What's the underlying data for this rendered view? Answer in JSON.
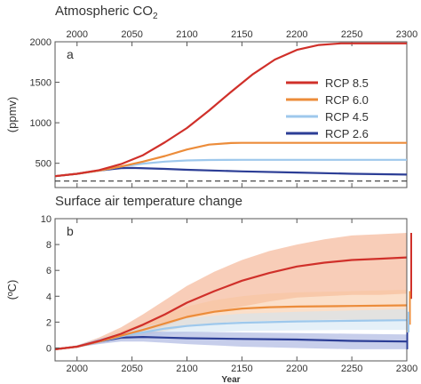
{
  "figure": {
    "panel_a_title": "Atmospheric CO",
    "panel_a_title_sub": "2",
    "panel_b_title": "Surface air temperature change"
  },
  "colors": {
    "rcp85": "#d0302a",
    "rcp60": "#ec8c3a",
    "rcp45": "#9ec8ec",
    "rcp26": "#2c3e96",
    "rcp85_band": "#f3a47e",
    "rcp60_band": "#f7c49c",
    "rcp45_band": "#cfe3f3",
    "rcp26_band": "#a9b3e1",
    "axis": "#555555",
    "baseline": "#333333"
  },
  "chart_data": [
    {
      "type": "line",
      "panel_label": "a",
      "title": "Atmospheric CO2",
      "xlabel": "",
      "ylabel": "(ppmv)",
      "xlim": [
        1980,
        2300
      ],
      "ylim": [
        200,
        2000
      ],
      "x_ticks": [
        2000,
        2050,
        2100,
        2150,
        2200,
        2250,
        2300
      ],
      "x_ticks_top": [
        2000,
        2050,
        2100,
        2150,
        2200,
        2250,
        2300
      ],
      "y_ticks": [
        500,
        1000,
        1500,
        2000
      ],
      "legend_position": "right",
      "reference_line": {
        "y": 280,
        "style": "dashed"
      },
      "series": [
        {
          "name": "RCP 8.5",
          "key": "rcp85",
          "x": [
            1980,
            2000,
            2020,
            2040,
            2060,
            2080,
            2100,
            2120,
            2140,
            2160,
            2180,
            2200,
            2220,
            2240,
            2250,
            2300
          ],
          "y": [
            340,
            370,
            415,
            490,
            600,
            760,
            935,
            1150,
            1380,
            1600,
            1780,
            1900,
            1960,
            1980,
            1980,
            1980
          ]
        },
        {
          "name": "RCP 6.0",
          "key": "rcp60",
          "x": [
            1980,
            2000,
            2020,
            2040,
            2060,
            2080,
            2100,
            2120,
            2140,
            2150,
            2200,
            2250,
            2300
          ],
          "y": [
            340,
            370,
            410,
            460,
            520,
            590,
            670,
            730,
            750,
            752,
            752,
            752,
            752
          ]
        },
        {
          "name": "RCP 4.5",
          "key": "rcp45",
          "x": [
            1980,
            2000,
            2020,
            2040,
            2060,
            2080,
            2100,
            2120,
            2150,
            2200,
            2250,
            2300
          ],
          "y": [
            340,
            370,
            410,
            460,
            495,
            520,
            535,
            540,
            542,
            542,
            542,
            542
          ]
        },
        {
          "name": "RCP 2.6",
          "key": "rcp26",
          "x": [
            1980,
            2000,
            2020,
            2040,
            2050,
            2080,
            2100,
            2150,
            2200,
            2250,
            2300
          ],
          "y": [
            340,
            370,
            410,
            440,
            443,
            430,
            420,
            400,
            385,
            370,
            360
          ]
        }
      ]
    },
    {
      "type": "area",
      "panel_label": "b",
      "title": "Surface air temperature change",
      "xlabel": "Year",
      "ylabel": "(ºC)",
      "xlim": [
        1980,
        2300
      ],
      "ylim": [
        -1,
        10
      ],
      "x_ticks": [
        2000,
        2050,
        2100,
        2150,
        2200,
        2250,
        2300
      ],
      "y_ticks": [
        0,
        2,
        4,
        6,
        8,
        10
      ],
      "series": [
        {
          "name": "RCP 8.5",
          "key": "rcp85",
          "x": [
            1980,
            2000,
            2020,
            2040,
            2060,
            2080,
            2100,
            2125,
            2150,
            2175,
            2200,
            2225,
            2250,
            2275,
            2300
          ],
          "y": [
            -0.1,
            0.1,
            0.55,
            1.1,
            1.8,
            2.6,
            3.5,
            4.4,
            5.2,
            5.8,
            6.3,
            6.6,
            6.8,
            6.9,
            7.0
          ],
          "lower": [
            -0.1,
            0.05,
            0.35,
            0.7,
            1.2,
            1.7,
            2.3,
            2.8,
            3.2,
            3.6,
            3.9,
            4.0,
            4.1,
            4.1,
            4.2
          ],
          "upper": [
            -0.1,
            0.2,
            0.8,
            1.6,
            2.6,
            3.7,
            4.8,
            5.9,
            6.8,
            7.5,
            8.0,
            8.4,
            8.7,
            8.8,
            8.9
          ],
          "range_bar": [
            3.8,
            8.9
          ]
        },
        {
          "name": "RCP 6.0",
          "key": "rcp60",
          "x": [
            1980,
            2000,
            2020,
            2040,
            2060,
            2080,
            2100,
            2125,
            2150,
            2175,
            2200,
            2250,
            2300
          ],
          "y": [
            -0.1,
            0.1,
            0.5,
            0.95,
            1.4,
            1.9,
            2.4,
            2.8,
            3.05,
            3.15,
            3.2,
            3.25,
            3.3
          ],
          "lower": [
            -0.1,
            0.05,
            0.35,
            0.65,
            0.95,
            1.3,
            1.65,
            1.9,
            2.05,
            2.1,
            2.15,
            2.2,
            2.2
          ],
          "upper": [
            -0.1,
            0.2,
            0.7,
            1.3,
            1.9,
            2.6,
            3.2,
            3.7,
            4.0,
            4.2,
            4.3,
            4.4,
            4.5
          ],
          "range_bar": [
            1.8,
            4.4
          ]
        },
        {
          "name": "RCP 4.5",
          "key": "rcp45",
          "x": [
            1980,
            2000,
            2020,
            2040,
            2060,
            2080,
            2100,
            2125,
            2150,
            2200,
            2250,
            2300
          ],
          "y": [
            -0.1,
            0.1,
            0.5,
            0.9,
            1.2,
            1.5,
            1.7,
            1.85,
            1.95,
            2.05,
            2.1,
            2.15
          ],
          "lower": [
            -0.1,
            0.05,
            0.35,
            0.6,
            0.85,
            1.0,
            1.15,
            1.25,
            1.3,
            1.35,
            1.4,
            1.4
          ],
          "upper": [
            -0.1,
            0.2,
            0.7,
            1.2,
            1.6,
            2.0,
            2.3,
            2.5,
            2.65,
            2.8,
            2.9,
            3.0
          ],
          "range_bar": [
            1.2,
            2.8
          ]
        },
        {
          "name": "RCP 2.6",
          "key": "rcp26",
          "x": [
            1980,
            2000,
            2020,
            2040,
            2060,
            2080,
            2100,
            2150,
            2200,
            2250,
            2300
          ],
          "y": [
            -0.1,
            0.1,
            0.5,
            0.8,
            0.85,
            0.8,
            0.75,
            0.7,
            0.65,
            0.55,
            0.5
          ],
          "lower": [
            -0.1,
            0.05,
            0.3,
            0.5,
            0.5,
            0.4,
            0.3,
            0.1,
            0.0,
            -0.1,
            -0.1
          ],
          "upper": [
            -0.1,
            0.2,
            0.7,
            1.1,
            1.25,
            1.25,
            1.25,
            1.2,
            1.15,
            1.1,
            1.05
          ],
          "range_bar": [
            -0.1,
            1.2
          ]
        }
      ]
    }
  ]
}
